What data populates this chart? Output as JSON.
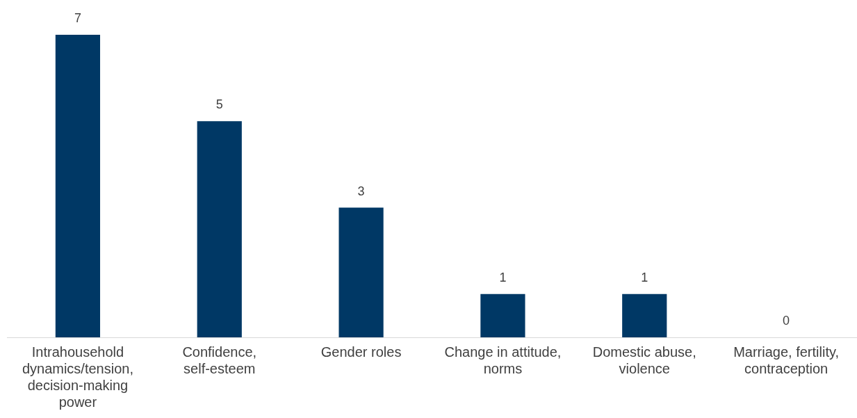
{
  "chart_data": {
    "type": "bar",
    "categories": [
      "Intrahousehold dynamics/tension, decision-making power",
      "Confidence, self-esteem",
      "Gender roles",
      "Change in attitude, norms",
      "Domestic abuse, violence",
      "Marriage, fertility, contraception"
    ],
    "values": [
      7,
      5,
      3,
      1,
      1,
      0
    ],
    "color": "#003865",
    "data_labels": true,
    "grid": false,
    "legend": false
  }
}
